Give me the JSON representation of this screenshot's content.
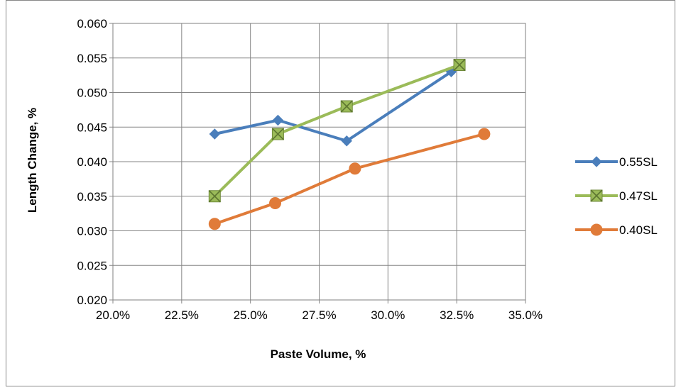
{
  "chart_data": {
    "type": "line",
    "title": "",
    "xlabel": "Paste Volume, %",
    "ylabel": "Length Change, %",
    "xlim": [
      20.0,
      35.0
    ],
    "ylim": [
      0.02,
      0.06
    ],
    "x_ticks": [
      20.0,
      22.5,
      25.0,
      27.5,
      30.0,
      32.5,
      35.0
    ],
    "x_tick_labels": [
      "20.0%",
      "22.5%",
      "25.0%",
      "27.5%",
      "30.0%",
      "32.5%",
      "35.0%"
    ],
    "y_ticks": [
      0.02,
      0.025,
      0.03,
      0.035,
      0.04,
      0.045,
      0.05,
      0.055,
      0.06
    ],
    "y_tick_labels": [
      "0.020",
      "0.025",
      "0.030",
      "0.035",
      "0.040",
      "0.045",
      "0.050",
      "0.055",
      "0.060"
    ],
    "grid": true,
    "legend_position": "right",
    "series": [
      {
        "name": "0.55SL",
        "color": "#4a7ebb",
        "marker": "diamond",
        "points": [
          {
            "x": 23.7,
            "y": 0.044
          },
          {
            "x": 26.0,
            "y": 0.046
          },
          {
            "x": 28.5,
            "y": 0.043
          },
          {
            "x": 32.3,
            "y": 0.053
          }
        ]
      },
      {
        "name": "0.47SL",
        "color": "#9bbb59",
        "marker": "x-square",
        "points": [
          {
            "x": 23.7,
            "y": 0.035
          },
          {
            "x": 26.0,
            "y": 0.044
          },
          {
            "x": 28.5,
            "y": 0.048
          },
          {
            "x": 32.6,
            "y": 0.054
          }
        ]
      },
      {
        "name": "0.40SL",
        "color": "#e07b39",
        "marker": "circle",
        "points": [
          {
            "x": 23.7,
            "y": 0.031
          },
          {
            "x": 25.9,
            "y": 0.034
          },
          {
            "x": 28.8,
            "y": 0.039
          },
          {
            "x": 33.5,
            "y": 0.044
          }
        ]
      }
    ]
  }
}
